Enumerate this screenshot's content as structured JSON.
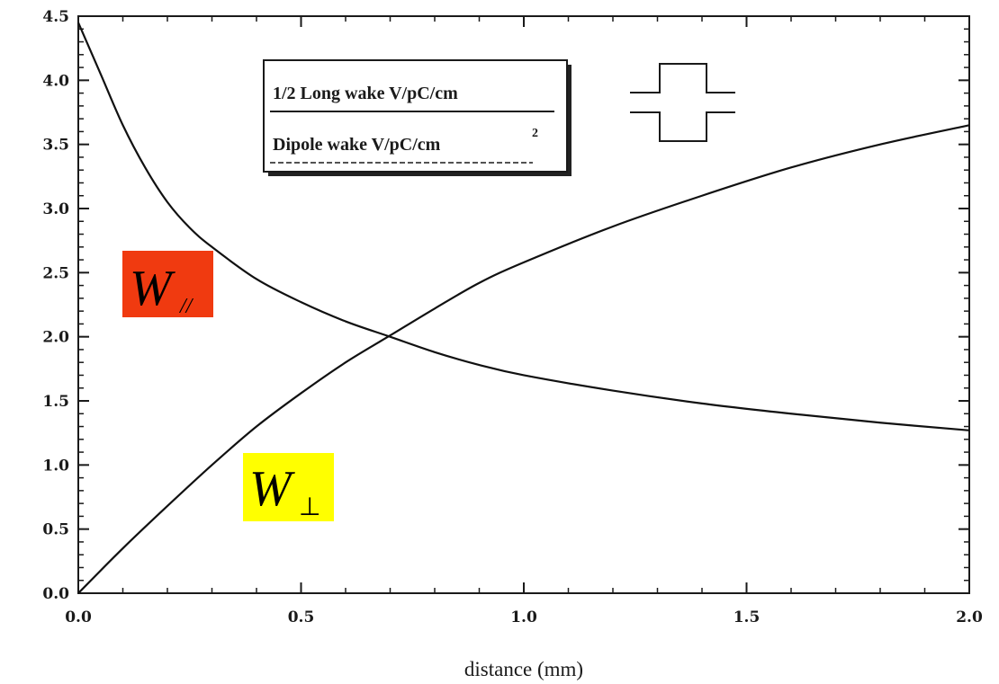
{
  "chart_data": {
    "type": "line",
    "xlabel": "distance (mm)",
    "ylabel": "",
    "xlim": [
      0.0,
      2.0
    ],
    "ylim": [
      0.0,
      4.5
    ],
    "x_ticks": [
      "0.0",
      "0.5",
      "1.0",
      "1.5",
      "2.0"
    ],
    "y_ticks": [
      "0.0",
      "0.5",
      "1.0",
      "1.5",
      "2.0",
      "2.5",
      "3.0",
      "3.5",
      "4.0",
      "4.5"
    ],
    "legend": {
      "placement": "top-center",
      "entries": [
        "1/2 Long wake V/pC/cm",
        "Dipole wake V/pC/cm"
      ],
      "superscript": "2"
    },
    "series": [
      {
        "name": "1/2 Long wake V/pC/cm",
        "x": [
          0.0,
          0.05,
          0.1,
          0.15,
          0.2,
          0.25,
          0.3,
          0.4,
          0.5,
          0.6,
          0.7,
          0.8,
          0.9,
          1.0,
          1.2,
          1.4,
          1.6,
          1.8,
          2.0
        ],
        "y": [
          4.45,
          4.05,
          3.65,
          3.32,
          3.05,
          2.85,
          2.7,
          2.45,
          2.27,
          2.12,
          2.0,
          1.88,
          1.78,
          1.7,
          1.58,
          1.48,
          1.4,
          1.33,
          1.27
        ]
      },
      {
        "name": "Dipole wake V/pC/cm",
        "x": [
          0.0,
          0.1,
          0.2,
          0.3,
          0.4,
          0.5,
          0.6,
          0.7,
          0.8,
          0.9,
          1.0,
          1.2,
          1.4,
          1.6,
          1.8,
          2.0
        ],
        "y": [
          0.0,
          0.35,
          0.68,
          1.0,
          1.3,
          1.56,
          1.8,
          2.01,
          2.22,
          2.42,
          2.58,
          2.86,
          3.1,
          3.32,
          3.5,
          3.65
        ]
      }
    ],
    "annotations": [
      {
        "main": "W",
        "sub": "//",
        "bg": "#f03a10",
        "x": 0.18,
        "y": 2.45
      },
      {
        "main": "W",
        "sub": "⊥",
        "bg": "#ffff00",
        "x": 0.45,
        "y": 0.78
      }
    ]
  },
  "colors": {
    "curve": "#111111",
    "frame": "#1a1a1a"
  }
}
